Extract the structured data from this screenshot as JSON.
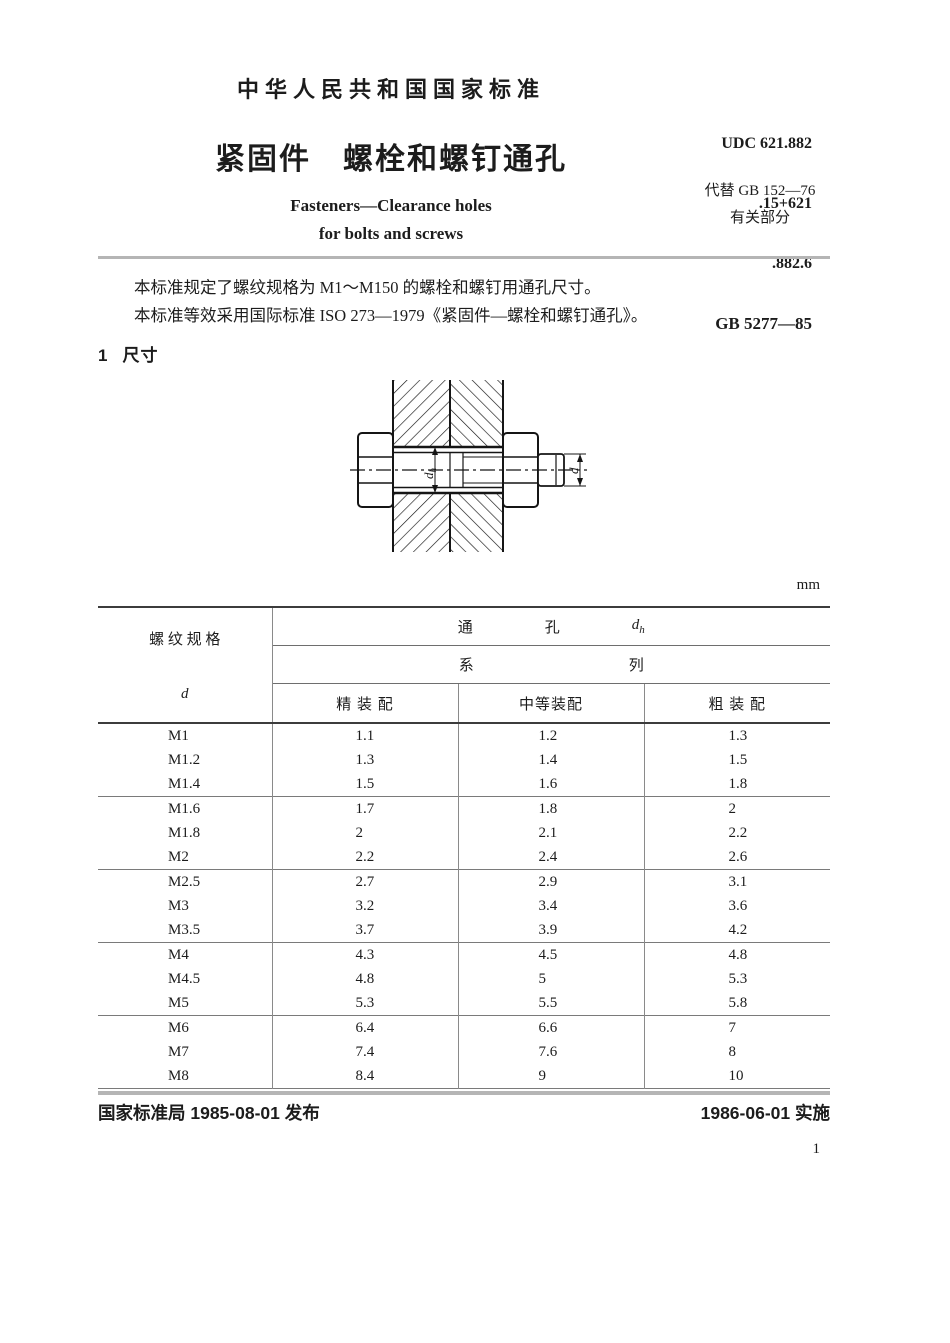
{
  "header": {
    "national_standard": "中华人民共和国国家标准",
    "title": "紧固件　螺栓和螺钉通孔",
    "title_en_line1": "Fasteners—Clearance holes",
    "title_en_line2": "for bolts and screws",
    "udc_line1": "UDC 621.882",
    "udc_line2": ".15+621",
    "udc_line3": ".882.6",
    "standard_no": "GB 5277—85",
    "replaces_line1": "代替 GB 152—76",
    "replaces_line2": "有关部分"
  },
  "intro": {
    "para1": "本标准规定了螺纹规格为 M1～M150 的螺栓和螺钉用通孔尺寸。",
    "para2": "本标准等效采用国际标准 ISO 273—1979《紧固件—螺栓和螺钉通孔》。"
  },
  "section1": {
    "number": "1",
    "title": "尺寸"
  },
  "figure": {
    "label_dh_sym": "d",
    "label_dh_sub": "h",
    "label_d": "d"
  },
  "table": {
    "unit": "mm",
    "col1_header_line1": "螺 纹 规 格",
    "col1_header_line2": "d",
    "span_header": {
      "part1": "通",
      "part2": "孔",
      "sym": "d",
      "sym_sub": "h"
    },
    "series_header": {
      "part1": "系",
      "part2": "列"
    },
    "fit_headers": [
      "精 装 配",
      "中等装配",
      "粗 装 配"
    ],
    "groups": [
      {
        "rows": [
          [
            "M1",
            "1.1",
            "1.2",
            "1.3"
          ],
          [
            "M1.2",
            "1.3",
            "1.4",
            "1.5"
          ],
          [
            "M1.4",
            "1.5",
            "1.6",
            "1.8"
          ]
        ]
      },
      {
        "rows": [
          [
            "M1.6",
            "1.7",
            "1.8",
            "2"
          ],
          [
            "M1.8",
            "2",
            "2.1",
            "2.2"
          ],
          [
            "M2",
            "2.2",
            "2.4",
            "2.6"
          ]
        ]
      },
      {
        "rows": [
          [
            "M2.5",
            "2.7",
            "2.9",
            "3.1"
          ],
          [
            "M3",
            "3.2",
            "3.4",
            "3.6"
          ],
          [
            "M3.5",
            "3.7",
            "3.9",
            "4.2"
          ]
        ]
      },
      {
        "rows": [
          [
            "M4",
            "4.3",
            "4.5",
            "4.8"
          ],
          [
            "M4.5",
            "4.8",
            "5",
            "5.3"
          ],
          [
            "M5",
            "5.3",
            "5.5",
            "5.8"
          ]
        ]
      },
      {
        "rows": [
          [
            "M6",
            "6.4",
            "6.6",
            "7"
          ],
          [
            "M7",
            "7.4",
            "7.6",
            "8"
          ],
          [
            "M8",
            "8.4",
            "9",
            "10"
          ]
        ]
      }
    ]
  },
  "footer": {
    "issued": "国家标准局 1985-08-01 发布",
    "implemented": "1986-06-01 实施",
    "page_number": "1"
  }
}
